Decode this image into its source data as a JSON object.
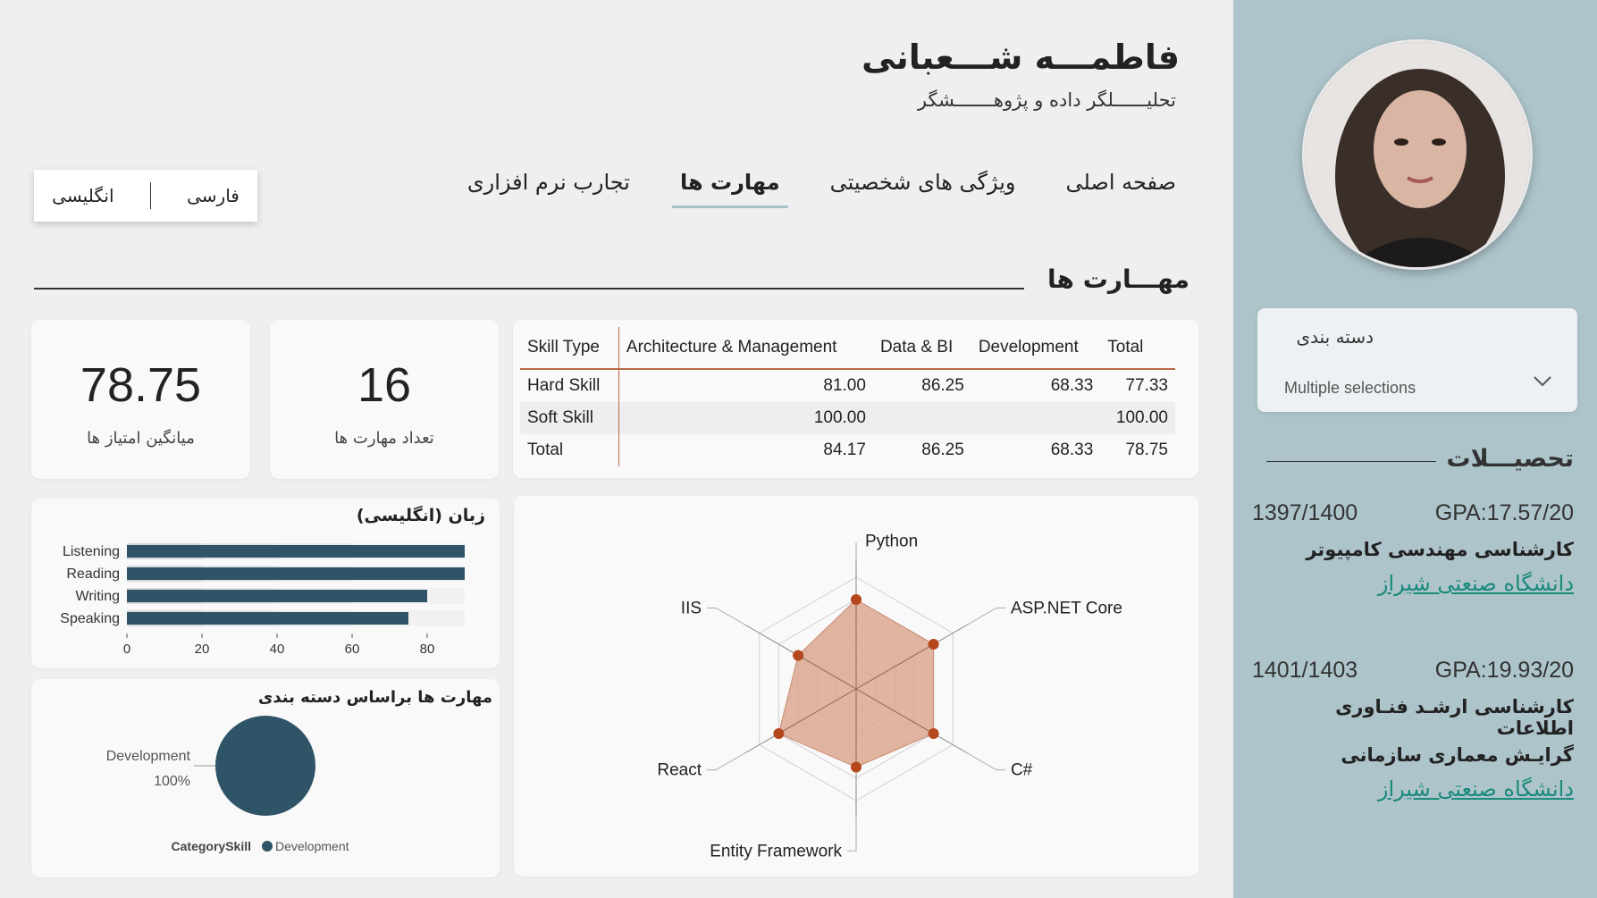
{
  "header": {
    "name": "فاطمـــه شـــعبانی",
    "subtitle": "تحلیــــــلگر داده و پژوهـــــــشگر"
  },
  "language_toggle": {
    "fa": "فارسی",
    "en": "انگلیسی"
  },
  "nav": {
    "items": [
      {
        "label": "صفحه اصلی",
        "active": false
      },
      {
        "label": "ویژگی های شخصیتی",
        "active": false
      },
      {
        "label": "مهارت ها",
        "active": true
      },
      {
        "label": "تجارب نرم افزاری",
        "active": false
      }
    ]
  },
  "section": {
    "title": "مهـــارت ها"
  },
  "kpis": {
    "skill_count": {
      "value": "16",
      "label": "تعداد مهارت ها"
    },
    "avg_score": {
      "value": "78.75",
      "label": "میانگین امتیاز ها"
    }
  },
  "matrix": {
    "headers": [
      "Skill Type",
      "Architecture & Management",
      "Data & BI",
      "Development",
      "Total"
    ],
    "rows": [
      [
        "Hard Skill",
        "81.00",
        "86.25",
        "68.33",
        "77.33"
      ],
      [
        "Soft Skill",
        "100.00",
        "",
        "",
        "100.00"
      ],
      [
        "Total",
        "84.17",
        "86.25",
        "68.33",
        "78.75"
      ]
    ]
  },
  "sidebar": {
    "filter": {
      "title": "دسته بندی",
      "value": "Multiple selections"
    },
    "education_title": "تحصیـــلات",
    "education": [
      {
        "years": "1397/1400",
        "gpa": "GPA:17.57/20",
        "degree": "کارشناسی مهندسی کامپیوتر",
        "university": "دانشگاه صنعتی شیراز"
      },
      {
        "years": "1401/1403",
        "gpa": "GPA:19.93/20",
        "degree": "کارشناسی ارشـد فنـاوری اطلاعات",
        "degree2": "گرایـش معماری سازمانی",
        "university": "دانشگاه صنعتی شیراز"
      }
    ]
  },
  "colors": {
    "sidebar_bg": "#adc4cb",
    "bar_fill": "#2f5468",
    "radar_fill": "#d9a28a",
    "radar_point": "#b5471c",
    "link": "#1a8a7a"
  },
  "chart_data": [
    {
      "type": "bar",
      "orientation": "horizontal",
      "title": "زبان (انگلیسی)",
      "categories": [
        "Listening",
        "Reading",
        "Writing",
        "Speaking"
      ],
      "values": [
        90,
        90,
        80,
        75
      ],
      "xlim": [
        0,
        90
      ],
      "xticks": [
        0,
        20,
        40,
        60,
        80
      ]
    },
    {
      "type": "pie",
      "title": "مهارت ها براساس دسته بندی",
      "slices": [
        {
          "label": "Development",
          "value": 100,
          "percent_label": "100%"
        }
      ],
      "legend_title": "CategorySkill",
      "legend": [
        "Development"
      ]
    },
    {
      "type": "radar",
      "axes": [
        "Python",
        "ASP.NET Core",
        "C#",
        "Entity Framework",
        "React",
        "IIS"
      ],
      "values": [
        80,
        80,
        80,
        70,
        80,
        60
      ],
      "max": 100,
      "rings": 5
    }
  ]
}
